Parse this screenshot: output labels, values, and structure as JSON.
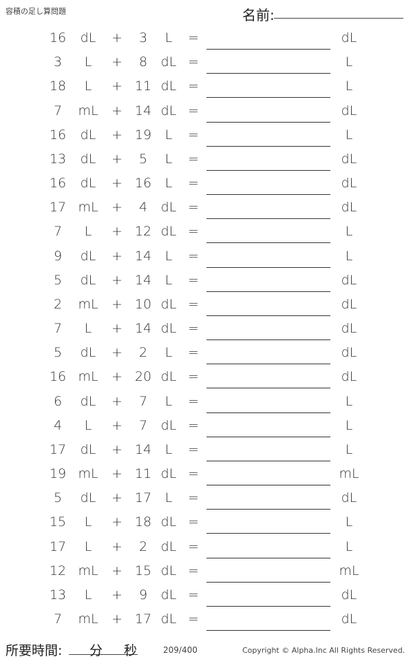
{
  "header": {
    "title": "容積の足し算問題",
    "name_label": "名前:"
  },
  "problems": [
    [
      "16",
      "dL",
      "+",
      "3",
      "L",
      "=",
      "dL"
    ],
    [
      "3",
      "L",
      "+",
      "8",
      "dL",
      "=",
      "L"
    ],
    [
      "18",
      "L",
      "+",
      "11",
      "dL",
      "=",
      "L"
    ],
    [
      "7",
      "mL",
      "+",
      "14",
      "dL",
      "=",
      "dL"
    ],
    [
      "16",
      "dL",
      "+",
      "19",
      "L",
      "=",
      "L"
    ],
    [
      "13",
      "dL",
      "+",
      "5",
      "L",
      "=",
      "dL"
    ],
    [
      "16",
      "dL",
      "+",
      "16",
      "L",
      "=",
      "dL"
    ],
    [
      "17",
      "mL",
      "+",
      "4",
      "dL",
      "=",
      "dL"
    ],
    [
      "7",
      "L",
      "+",
      "12",
      "dL",
      "=",
      "L"
    ],
    [
      "9",
      "dL",
      "+",
      "14",
      "L",
      "=",
      "L"
    ],
    [
      "5",
      "dL",
      "+",
      "14",
      "L",
      "=",
      "dL"
    ],
    [
      "2",
      "mL",
      "+",
      "10",
      "dL",
      "=",
      "dL"
    ],
    [
      "7",
      "L",
      "+",
      "14",
      "dL",
      "=",
      "dL"
    ],
    [
      "5",
      "dL",
      "+",
      "2",
      "L",
      "=",
      "dL"
    ],
    [
      "16",
      "mL",
      "+",
      "20",
      "dL",
      "=",
      "dL"
    ],
    [
      "6",
      "dL",
      "+",
      "7",
      "L",
      "=",
      "L"
    ],
    [
      "4",
      "L",
      "+",
      "7",
      "dL",
      "=",
      "L"
    ],
    [
      "17",
      "dL",
      "+",
      "14",
      "L",
      "=",
      "L"
    ],
    [
      "19",
      "mL",
      "+",
      "11",
      "dL",
      "=",
      "mL"
    ],
    [
      "5",
      "dL",
      "+",
      "17",
      "L",
      "=",
      "dL"
    ],
    [
      "15",
      "L",
      "+",
      "18",
      "dL",
      "=",
      "L"
    ],
    [
      "17",
      "L",
      "+",
      "2",
      "dL",
      "=",
      "L"
    ],
    [
      "12",
      "mL",
      "+",
      "15",
      "dL",
      "=",
      "mL"
    ],
    [
      "13",
      "L",
      "+",
      "9",
      "dL",
      "=",
      "dL"
    ],
    [
      "7",
      "mL",
      "+",
      "17",
      "dL",
      "=",
      "dL"
    ]
  ],
  "footer": {
    "time_label": "所要時間:",
    "minutes": "分",
    "seconds": "秒",
    "page": "209/400",
    "copyright": "Copyright © Alpha.Inc All Rights Reserved."
  }
}
